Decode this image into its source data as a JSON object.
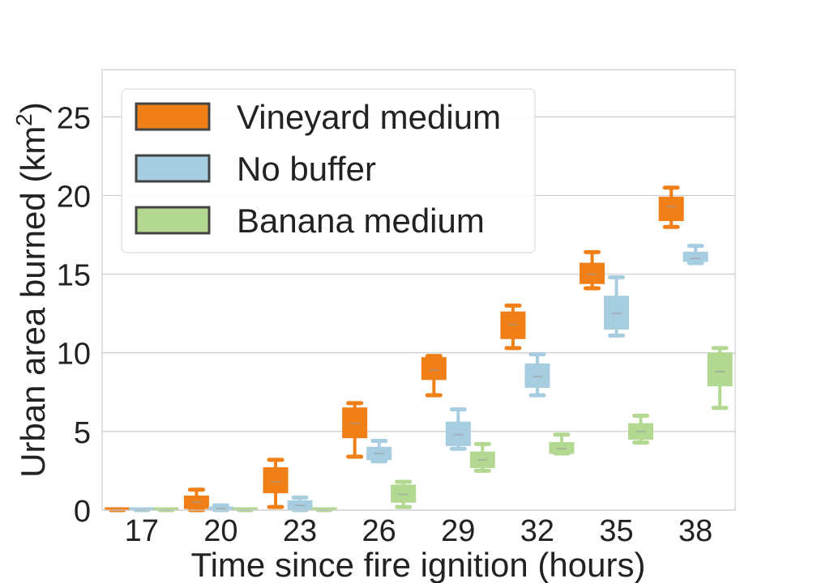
{
  "chart_data": {
    "type": "box",
    "xlabel": "Time since fire ignition (hours)",
    "ylabel_main": "Urban area burned (km",
    "ylabel_sup": "2",
    "ylabel_close": ")",
    "categories": [
      "17",
      "20",
      "23",
      "26",
      "29",
      "32",
      "35",
      "38"
    ],
    "ylim": [
      0,
      28
    ],
    "yticks": [
      0,
      5,
      10,
      15,
      20,
      25
    ],
    "grid": "horizontal",
    "legend_position": "top-left",
    "series": [
      {
        "name": "Vineyard medium",
        "color": "#f07f17",
        "boxes": [
          {
            "whislo": 0.0,
            "q1": 0.0,
            "med": 0.0,
            "q3": 0.05,
            "whishi": 0.05
          },
          {
            "whislo": 0.0,
            "q1": 0.1,
            "med": 0.5,
            "q3": 0.9,
            "whishi": 1.3
          },
          {
            "whislo": 0.2,
            "q1": 1.1,
            "med": 1.8,
            "q3": 2.7,
            "whishi": 3.2
          },
          {
            "whislo": 3.4,
            "q1": 4.6,
            "med": 5.5,
            "q3": 6.5,
            "whishi": 6.8
          },
          {
            "whislo": 7.3,
            "q1": 8.3,
            "med": 8.9,
            "q3": 9.7,
            "whishi": 9.8
          },
          {
            "whislo": 10.3,
            "q1": 10.9,
            "med": 11.8,
            "q3": 12.6,
            "whishi": 13.0
          },
          {
            "whislo": 14.1,
            "q1": 14.4,
            "med": 15.0,
            "q3": 15.7,
            "whishi": 16.4
          },
          {
            "whislo": 18.0,
            "q1": 18.4,
            "med": 19.3,
            "q3": 19.9,
            "whishi": 20.5
          }
        ]
      },
      {
        "name": "No buffer",
        "color": "#a6cde0",
        "boxes": [
          {
            "whislo": 0.0,
            "q1": 0.0,
            "med": 0.0,
            "q3": 0.05,
            "whishi": 0.05
          },
          {
            "whislo": 0.0,
            "q1": 0.0,
            "med": 0.1,
            "q3": 0.2,
            "whishi": 0.3
          },
          {
            "whislo": 0.0,
            "q1": 0.05,
            "med": 0.3,
            "q3": 0.6,
            "whishi": 0.8
          },
          {
            "whislo": 3.1,
            "q1": 3.2,
            "med": 3.6,
            "q3": 4.0,
            "whishi": 4.4
          },
          {
            "whislo": 3.9,
            "q1": 4.1,
            "med": 4.8,
            "q3": 5.6,
            "whishi": 6.4
          },
          {
            "whislo": 7.3,
            "q1": 7.8,
            "med": 8.5,
            "q3": 9.3,
            "whishi": 9.9
          },
          {
            "whislo": 11.1,
            "q1": 11.5,
            "med": 12.5,
            "q3": 13.6,
            "whishi": 14.8
          },
          {
            "whislo": 15.7,
            "q1": 15.8,
            "med": 16.0,
            "q3": 16.4,
            "whishi": 16.8
          }
        ]
      },
      {
        "name": "Banana medium",
        "color": "#b2d891",
        "boxes": [
          {
            "whislo": 0.0,
            "q1": 0.0,
            "med": 0.0,
            "q3": 0.05,
            "whishi": 0.05
          },
          {
            "whislo": 0.0,
            "q1": 0.0,
            "med": 0.0,
            "q3": 0.05,
            "whishi": 0.05
          },
          {
            "whislo": 0.0,
            "q1": 0.0,
            "med": 0.0,
            "q3": 0.05,
            "whishi": 0.05
          },
          {
            "whislo": 0.2,
            "q1": 0.5,
            "med": 1.0,
            "q3": 1.6,
            "whishi": 1.8
          },
          {
            "whislo": 2.5,
            "q1": 2.7,
            "med": 3.2,
            "q3": 3.7,
            "whishi": 4.2
          },
          {
            "whislo": 3.6,
            "q1": 3.6,
            "med": 3.9,
            "q3": 4.3,
            "whishi": 4.8
          },
          {
            "whislo": 4.3,
            "q1": 4.5,
            "med": 5.0,
            "q3": 5.5,
            "whishi": 6.0
          },
          {
            "whislo": 6.5,
            "q1": 7.9,
            "med": 8.8,
            "q3": 10.0,
            "whishi": 10.3
          }
        ]
      }
    ]
  }
}
